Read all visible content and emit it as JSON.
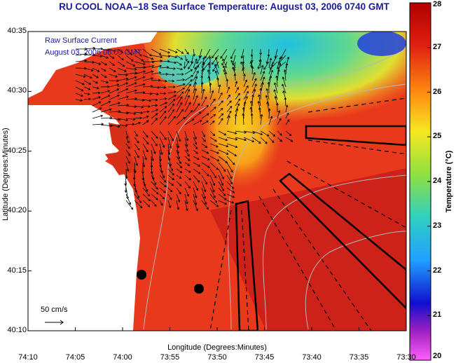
{
  "title": "RU COOL  NOAA–18  Sea Surface Temperature:  August 03, 2006 0740 GMT",
  "legend": {
    "line1": "Raw Surface Current",
    "line2": "August 03, 2006 08:00 GMT"
  },
  "scale_bar": {
    "label": "50 cm/s"
  },
  "axes": {
    "x_label": "Longitude (Degrees:Minutes)",
    "y_label": "Latitude (Degrees:Minutes)",
    "x_ticks": [
      "74:10",
      "74:05",
      "74:00",
      "73:55",
      "73:50",
      "73:45",
      "73:40",
      "73:35",
      "73:30"
    ],
    "y_ticks": [
      "40:35",
      "40:30",
      "40:25",
      "40:20",
      "40:15",
      "40:10"
    ]
  },
  "colorbar": {
    "label": "Temperature (°C)",
    "ticks": [
      "28",
      "27",
      "26",
      "25",
      "24",
      "23",
      "22",
      "21",
      "20"
    ],
    "min": 20,
    "max": 28
  },
  "colors": {
    "title": "#1b1b9a",
    "land": "#ffffff",
    "warm_sea": "#e23a1c",
    "cold_sea": "#40c8d8"
  }
}
